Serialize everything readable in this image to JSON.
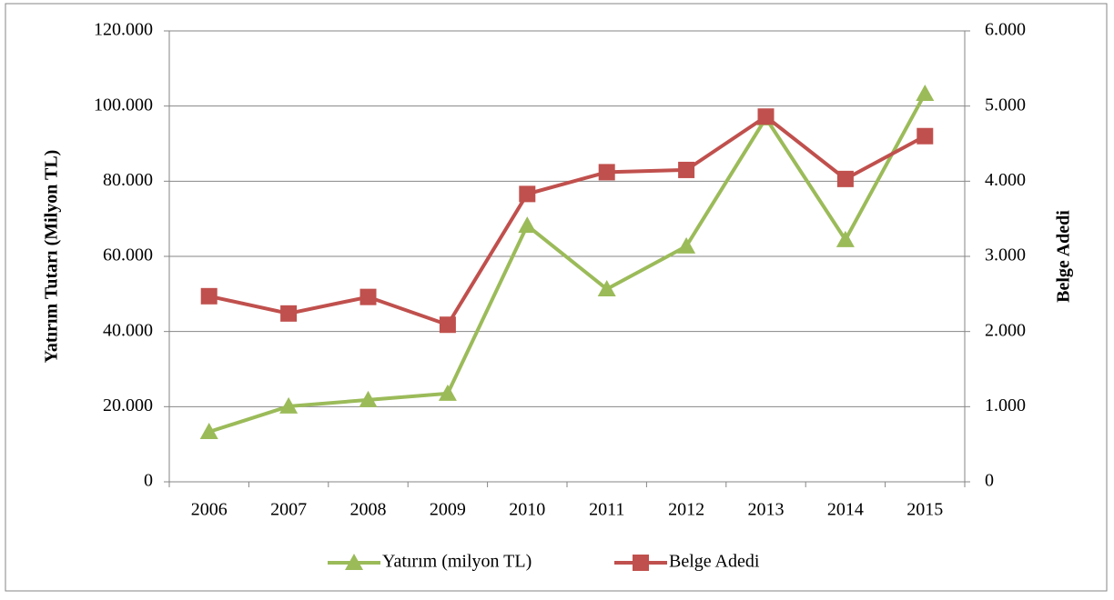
{
  "chart_data": {
    "type": "line",
    "categories": [
      "2006",
      "2007",
      "2008",
      "2009",
      "2010",
      "2011",
      "2012",
      "2013",
      "2014",
      "2015"
    ],
    "series": [
      {
        "name": "Yatırım (milyon TL)",
        "color": "#9bbb59",
        "axis": "y",
        "marker": "triangle",
        "values": [
          13300,
          20100,
          21800,
          23500,
          68200,
          51300,
          62700,
          96800,
          64400,
          103300
        ]
      },
      {
        "name": "Belge Adedi",
        "color": "#c0504d",
        "axis": "y2",
        "marker": "square",
        "values": [
          2470,
          2240,
          2460,
          2090,
          3830,
          4120,
          4150,
          4860,
          4030,
          4600
        ]
      }
    ],
    "ylabel": "Yatırım Tutarı (Milyon TL)",
    "y2label": "Belge Adedi",
    "ylim": [
      0,
      120000
    ],
    "yticks": [
      0,
      {
        "value": 20000,
        "label": "20.000"
      },
      {
        "value": 40000,
        "label": "40.000"
      },
      {
        "value": 60000,
        "label": "60.000"
      },
      {
        "value": 80000,
        "label": "80.000"
      },
      {
        "value": 100000,
        "label": "100.000"
      },
      {
        "value": 120000,
        "label": "120.000"
      }
    ],
    "y2lim": [
      0,
      6000
    ],
    "y2ticks": [
      0,
      {
        "value": 1000,
        "label": "1.000"
      },
      {
        "value": 2000,
        "label": "2.000"
      },
      {
        "value": 3000,
        "label": "3.000"
      },
      {
        "value": 4000,
        "label": "4.000"
      },
      {
        "value": 5000,
        "label": "5.000"
      },
      {
        "value": 6000,
        "label": "6.000"
      }
    ],
    "grid": true,
    "legend": "bottom"
  }
}
